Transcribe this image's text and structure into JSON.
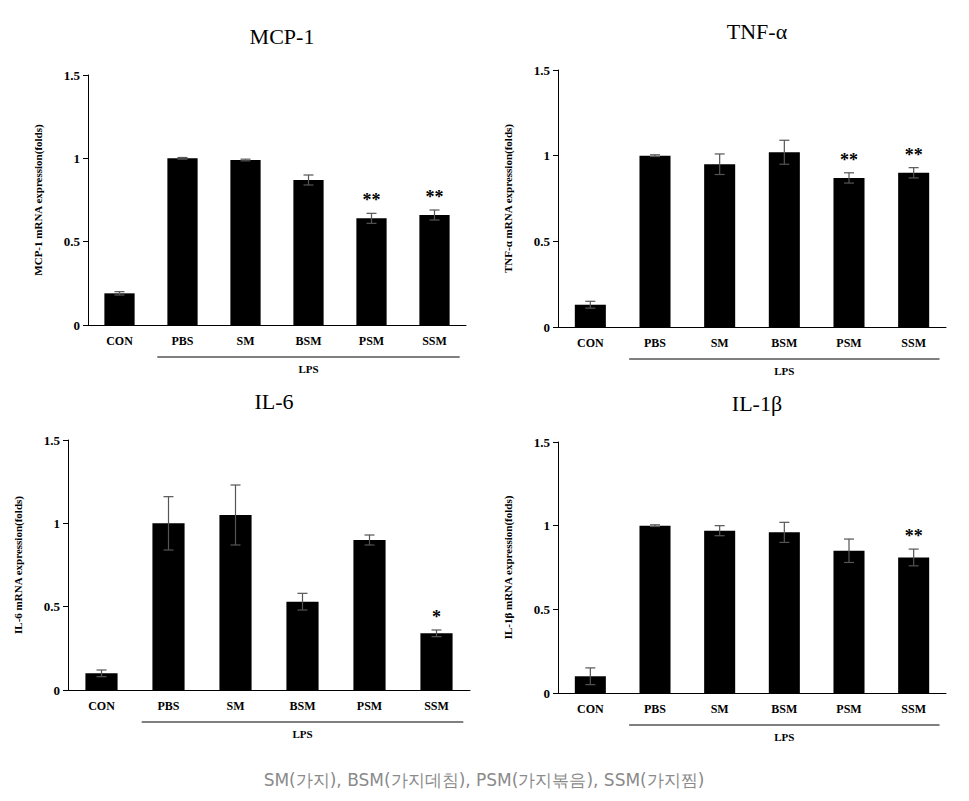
{
  "chart_data": [
    {
      "type": "bar",
      "title": "MCP-1",
      "y_label": "MCP-1 mRNA expression(folds)",
      "categories": [
        "CON",
        "PBS",
        "SM",
        "BSM",
        "PSM",
        "SSM"
      ],
      "values": [
        0.19,
        1.0,
        0.99,
        0.87,
        0.64,
        0.66
      ],
      "errors": [
        0.01,
        0.005,
        0.005,
        0.03,
        0.03,
        0.03
      ],
      "significance": [
        null,
        null,
        null,
        null,
        "**",
        "**"
      ],
      "group_label": {
        "text": "LPS",
        "from": "PBS",
        "to": "SSM"
      },
      "color": "#000000",
      "ylim": [
        0,
        1.5
      ],
      "yticks": [
        0,
        0.5,
        1,
        1.5
      ],
      "grid": false
    },
    {
      "type": "bar",
      "title": "TNF-α",
      "y_label": "TNF-α mRNA expression(folds)",
      "categories": [
        "CON",
        "PBS",
        "SM",
        "BSM",
        "PSM",
        "SSM"
      ],
      "values": [
        0.13,
        1.0,
        0.95,
        1.02,
        0.87,
        0.9
      ],
      "errors": [
        0.02,
        0.005,
        0.06,
        0.07,
        0.03,
        0.03
      ],
      "significance": [
        null,
        null,
        null,
        null,
        "**",
        "**"
      ],
      "group_label": {
        "text": "LPS",
        "from": "PBS",
        "to": "SSM"
      },
      "color": "#000000",
      "ylim": [
        0,
        1.5
      ],
      "yticks": [
        0,
        0.5,
        1,
        1.5
      ],
      "grid": false
    },
    {
      "type": "bar",
      "title": "IL-6",
      "y_label": "IL-6 mRNA expression(folds)",
      "categories": [
        "CON",
        "PBS",
        "SM",
        "BSM",
        "PSM",
        "SSM"
      ],
      "values": [
        0.1,
        1.0,
        1.05,
        0.53,
        0.9,
        0.34
      ],
      "errors": [
        0.02,
        0.16,
        0.18,
        0.05,
        0.03,
        0.02
      ],
      "significance": [
        null,
        null,
        null,
        null,
        null,
        "*"
      ],
      "group_label": {
        "text": "LPS",
        "from": "PBS",
        "to": "SSM"
      },
      "color": "#000000",
      "ylim": [
        0,
        1.5
      ],
      "yticks": [
        0,
        0.5,
        1,
        1.5
      ],
      "grid": false
    },
    {
      "type": "bar",
      "title": "IL-1β",
      "y_label": "IL-1β mRNA expression(folds)",
      "categories": [
        "CON",
        "PBS",
        "SM",
        "BSM",
        "PSM",
        "SSM"
      ],
      "values": [
        0.1,
        1.0,
        0.97,
        0.96,
        0.85,
        0.81
      ],
      "errors": [
        0.05,
        0.005,
        0.03,
        0.06,
        0.07,
        0.05
      ],
      "significance": [
        null,
        null,
        null,
        null,
        null,
        "**"
      ],
      "group_label": {
        "text": "LPS",
        "from": "PBS",
        "to": "SSM"
      },
      "color": "#000000",
      "ylim": [
        0,
        1.5
      ],
      "yticks": [
        0,
        0.5,
        1,
        1.5
      ],
      "grid": false
    }
  ],
  "caption": "SM(가지), BSM(가지데침), PSM(가지볶음), SSM(가지찜)"
}
